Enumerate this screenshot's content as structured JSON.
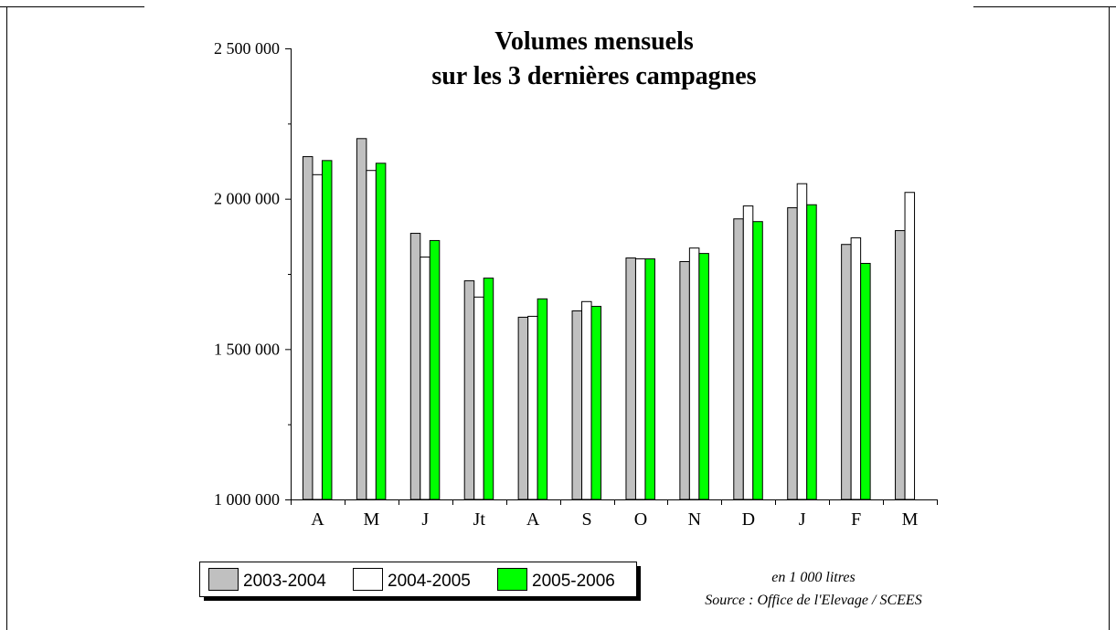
{
  "chart_data": {
    "type": "bar",
    "title": [
      "Volumes mensuels",
      "sur les 3 dernières campagnes"
    ],
    "categories": [
      "A",
      "M",
      "J",
      "Jt",
      "A",
      "S",
      "O",
      "N",
      "D",
      "J",
      "F",
      "M"
    ],
    "series": [
      {
        "name": "2003-2004",
        "color": "#c0c0c0",
        "values": [
          2140000,
          2200000,
          1885000,
          1727000,
          1606000,
          1627000,
          1803000,
          1791000,
          1933000,
          1970000,
          1848000,
          1894000
        ]
      },
      {
        "name": "2004-2005",
        "color": "#ffffff",
        "values": [
          2080000,
          2094000,
          1806000,
          1673000,
          1609000,
          1658000,
          1800000,
          1836000,
          1976000,
          2050000,
          1870000,
          2021000
        ]
      },
      {
        "name": "2005-2006",
        "color": "#00ff00",
        "values": [
          2127000,
          2118000,
          1861000,
          1736000,
          1667000,
          1642000,
          1800000,
          1818000,
          1924000,
          1980000,
          1785000,
          null
        ]
      }
    ],
    "ylim": [
      1000000,
      2500000
    ],
    "yticks": [
      {
        "value": 1000000,
        "label": "1 000 000"
      },
      {
        "value": 1500000,
        "label": "1 500 000"
      },
      {
        "value": 2000000,
        "label": "2 000 000"
      },
      {
        "value": 2500000,
        "label": "2 500 000"
      }
    ],
    "yticks_minor": [
      1250000,
      1750000,
      2250000
    ],
    "notes": [
      "en 1 000 litres",
      "Source : Office de l'Elevage / SCEES"
    ]
  }
}
